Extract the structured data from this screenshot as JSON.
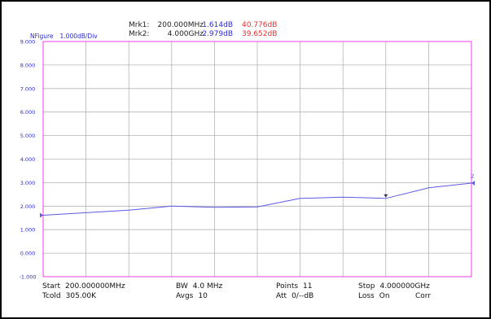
{
  "markers": {
    "mrk1": {
      "label": "Mrk1:",
      "freq": "200.000MHz",
      "nf": "1.614dB",
      "gain": "40.776dB"
    },
    "mrk2": {
      "label": "Mrk2:",
      "freq": "4.000GHz",
      "nf": "2.979dB",
      "gain": "39.652dB"
    }
  },
  "scale": {
    "param": "NFigure",
    "per_div": "1.000dB/Div"
  },
  "settings": {
    "start": {
      "label": "Start",
      "value": "200.000000MHz"
    },
    "tcold": {
      "label": "Tcold",
      "value": "305.00K"
    },
    "bw": {
      "label": "BW",
      "value": "4.0 MHz"
    },
    "avgs": {
      "label": "Avgs",
      "value": "10"
    },
    "points": {
      "label": "Points",
      "value": "11"
    },
    "att": {
      "label": "Att",
      "value": "0/--dB"
    },
    "stop": {
      "label": "Stop",
      "value": "4.000000GHz"
    },
    "loss": {
      "label": "Loss",
      "value": "On"
    },
    "corr": {
      "label": "Corr"
    }
  },
  "colors": {
    "trace": "#5a5ae6",
    "grid": "#b4b4b4",
    "border": "#e83ee8",
    "ticks": "#2b2bd9"
  },
  "chart_data": {
    "type": "line",
    "xlim": [
      200,
      4000
    ],
    "x_unit": "MHz",
    "ylim": [
      -1,
      9
    ],
    "y_ticks": [
      "-1.000",
      "0.000",
      "1.000",
      "2.000",
      "3.000",
      "4.000",
      "5.000",
      "6.000",
      "7.000",
      "8.000",
      "9.000"
    ],
    "x_divisions": 10,
    "grid": true,
    "series": [
      {
        "x": [
          200,
          580,
          960,
          1340,
          1720,
          2100,
          2480,
          2860,
          3240,
          3620,
          4000
        ],
        "values": [
          1.614,
          1.72,
          1.83,
          2.0,
          1.95,
          1.97,
          2.33,
          2.38,
          2.33,
          2.78,
          2.979
        ]
      }
    ],
    "markers": [
      {
        "x": 200,
        "y": 1.614
      },
      {
        "x": 3240,
        "y": 2.33
      },
      {
        "x": 4000,
        "y": 2.979,
        "label": "2"
      }
    ]
  }
}
